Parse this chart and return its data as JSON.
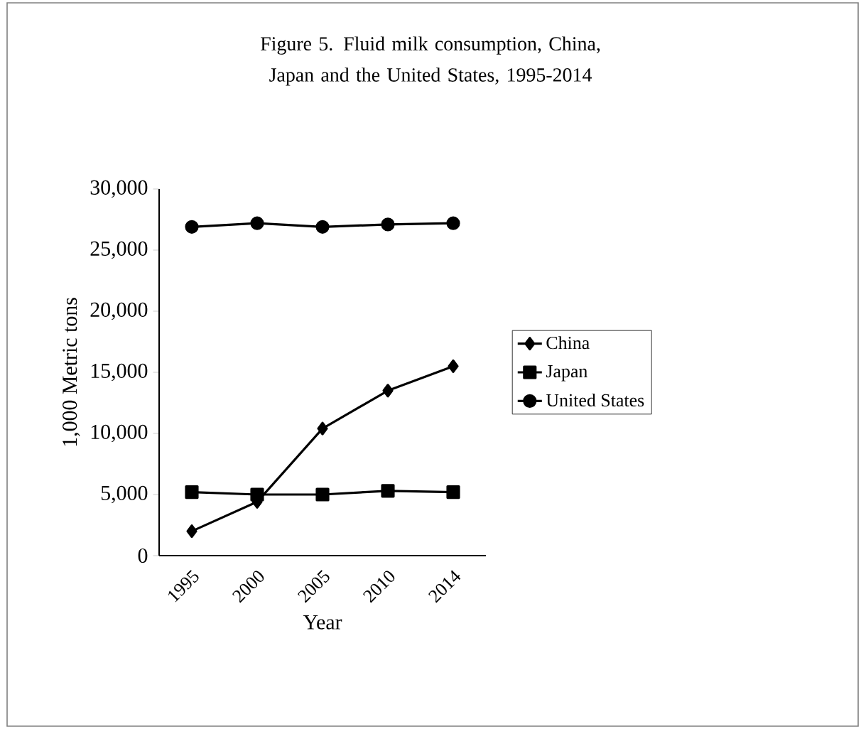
{
  "chart_data": {
    "type": "line",
    "title": "Figure 5. Fluid milk consumption, China, Japan and the United States, 1995-2014",
    "xlabel": "Year",
    "ylabel": "1,000 Metric tons",
    "categories": [
      "1995",
      "2000",
      "2005",
      "2010",
      "2014"
    ],
    "series": [
      {
        "name": "China",
        "color": "#000000",
        "marker": "diamond",
        "values": [
          2000,
          4400,
          10400,
          13500,
          15500
        ]
      },
      {
        "name": "Japan",
        "color": "#000000",
        "marker": "square",
        "values": [
          5200,
          5000,
          5000,
          5300,
          5200
        ]
      },
      {
        "name": "United States",
        "color": "#000000",
        "marker": "circle",
        "values": [
          26900,
          27200,
          26900,
          27100,
          27200
        ]
      }
    ],
    "ylim": [
      0,
      30000
    ],
    "yticks": [
      {
        "value": 0,
        "label": "0"
      },
      {
        "value": 5000,
        "label": "5,000"
      },
      {
        "value": 10000,
        "label": "10,000"
      },
      {
        "value": 15000,
        "label": "15,000"
      },
      {
        "value": 20000,
        "label": "20,000"
      },
      {
        "value": 25000,
        "label": "25,000"
      },
      {
        "value": 30000,
        "label": "30,000"
      }
    ],
    "grid": false,
    "legend": "right",
    "line_style": "solid"
  }
}
